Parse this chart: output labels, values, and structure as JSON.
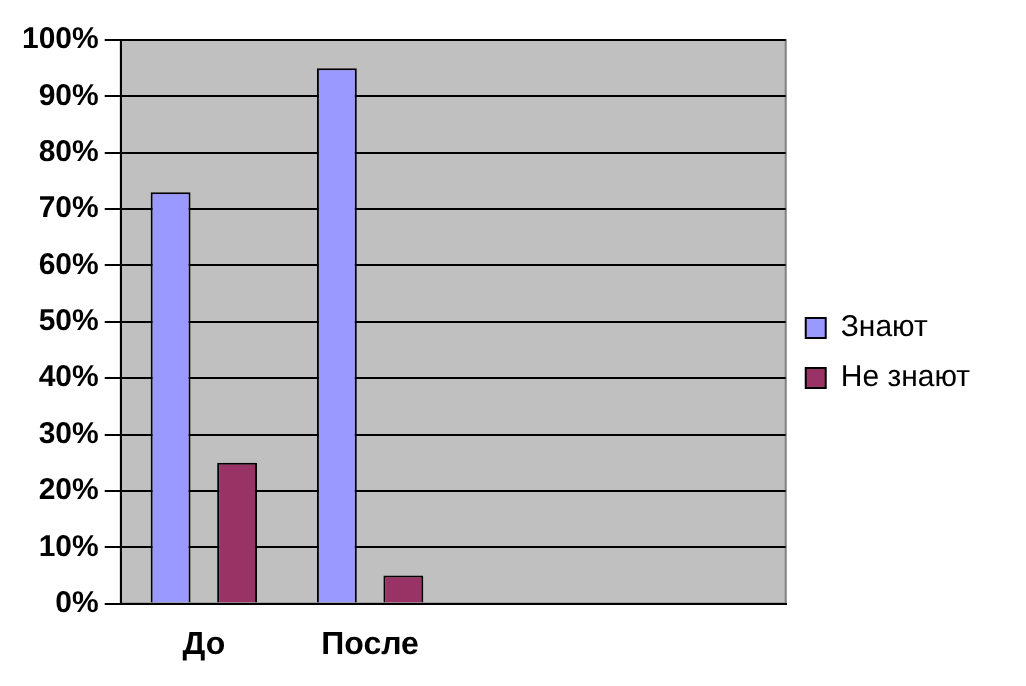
{
  "chart_data": {
    "type": "bar",
    "categories": [
      "До",
      "После",
      null,
      null
    ],
    "series": [
      {
        "name": "Знают",
        "color": "#9999ff",
        "values": [
          73,
          95,
          null,
          null
        ]
      },
      {
        "name": "Не знают",
        "color": "#993366",
        "values": [
          25,
          5,
          null,
          null
        ]
      }
    ],
    "ylim": [
      0,
      100
    ],
    "yticks": [
      {
        "value": 0,
        "label": "0%"
      },
      {
        "value": 10,
        "label": "10%"
      },
      {
        "value": 20,
        "label": "20%"
      },
      {
        "value": 30,
        "label": "30%"
      },
      {
        "value": 40,
        "label": "40%"
      },
      {
        "value": 50,
        "label": "50%"
      },
      {
        "value": 60,
        "label": "60%"
      },
      {
        "value": 70,
        "label": "70%"
      },
      {
        "value": 80,
        "label": "80%"
      },
      {
        "value": 90,
        "label": "90%"
      },
      {
        "value": 100,
        "label": "100%"
      }
    ],
    "grid": "y",
    "legend": "right"
  }
}
